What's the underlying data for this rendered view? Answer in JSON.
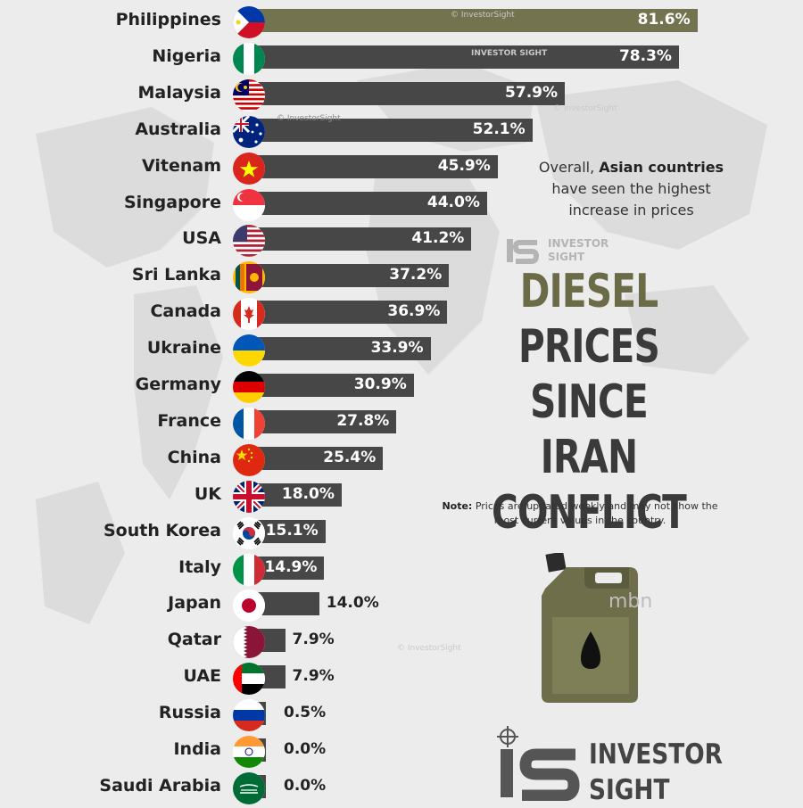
{
  "chart_data": {
    "type": "bar",
    "orientation": "horizontal",
    "title": "DIESEL PRICES SINCE IRAN CONFLICT",
    "title_lines": [
      "DIESEL",
      "PRICES",
      "SINCE IRAN",
      "CONFLICT"
    ],
    "unit": "%",
    "categories": [
      "Philippines",
      "Nigeria",
      "Malaysia",
      "Australia",
      "Vitenam",
      "Singapore",
      "USA",
      "Sri Lanka",
      "Canada",
      "Ukraine",
      "Germany",
      "France",
      "China",
      "UK",
      "South Korea",
      "Italy",
      "Japan",
      "Qatar",
      "UAE",
      "Russia",
      "India",
      "Saudi Arabia"
    ],
    "values": [
      81.6,
      78.3,
      57.9,
      52.1,
      45.9,
      44.0,
      41.2,
      37.2,
      36.9,
      33.9,
      30.9,
      27.8,
      25.4,
      18.0,
      15.1,
      14.9,
      14.0,
      7.9,
      7.9,
      0.5,
      0.0,
      0.0
    ],
    "labels": [
      "81.6%",
      "78.3%",
      "57.9%",
      "52.1%",
      "45.9%",
      "44.0%",
      "41.2%",
      "37.2%",
      "36.9%",
      "33.9%",
      "30.9%",
      "27.8%",
      "25.4%",
      "18.0%",
      "15.1%",
      "14.9%",
      "14.0%",
      "7.9%",
      "7.9%",
      "0.5%",
      "0.0%",
      "0.0%"
    ],
    "flags": [
      "ph",
      "ng",
      "my",
      "au",
      "vn",
      "sg",
      "us",
      "lk",
      "ca",
      "ua",
      "de",
      "fr",
      "cn",
      "gb",
      "kr",
      "it",
      "jp",
      "qa",
      "ae",
      "ru",
      "in",
      "sa"
    ],
    "xlim": [
      0,
      100
    ],
    "grid": false,
    "legend": "none"
  },
  "annotation": {
    "overall_prefix": "Overall, ",
    "overall_bold": "Asian countries",
    "overall_rest": "have seen the highest increase in prices"
  },
  "note": {
    "label": "Note:",
    "text": " Prices are updated weekly and may not show the most current values in the country."
  },
  "watermarks": {
    "copyright": "© InvestorSight",
    "small_brand": "INVESTOR SIGHT",
    "corner": "mbn"
  },
  "brand": {
    "line1": "INVESTOR",
    "line2": "SIGHT"
  },
  "colors": {
    "bar": "#474747",
    "highlight_bar": "#73744f",
    "title_accent": "#6b6b48",
    "title": "#3a3a3a",
    "background": "#ececec"
  },
  "icons": [
    "jerry-can-icon",
    "oil-drop-icon",
    "crosshair-icon",
    "investorsight-logo-icon"
  ]
}
